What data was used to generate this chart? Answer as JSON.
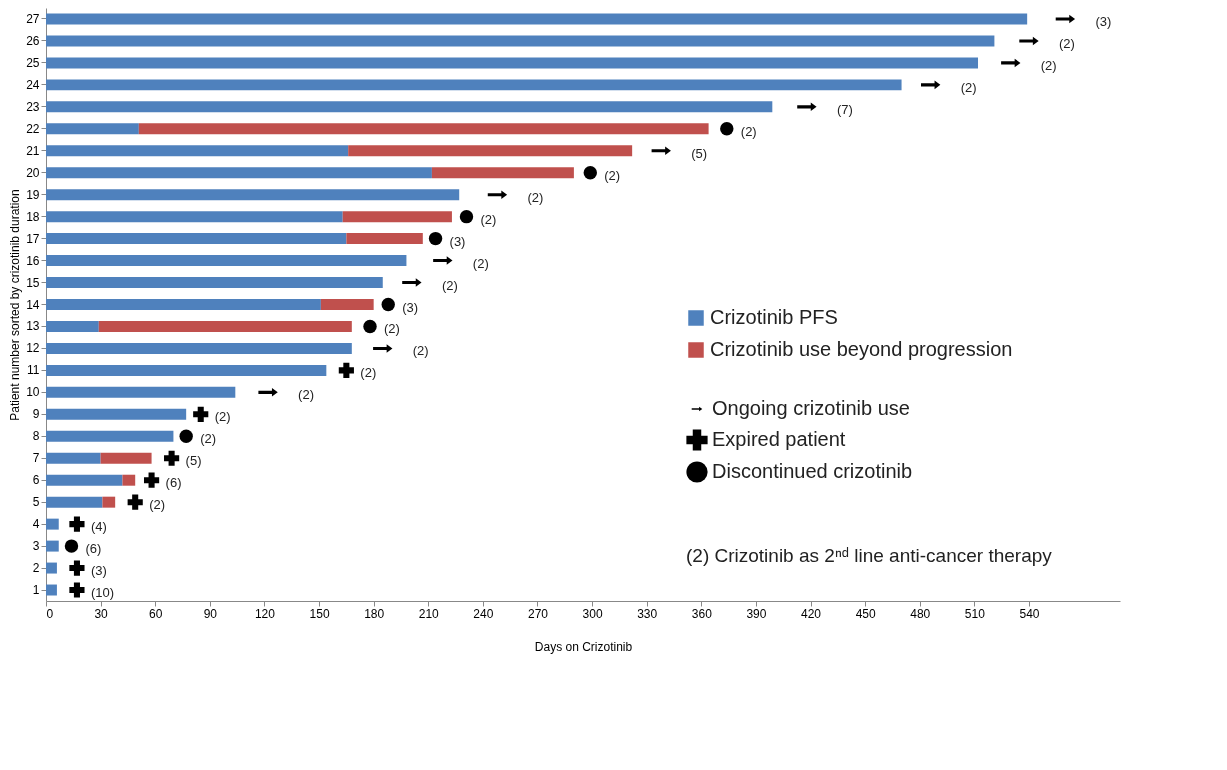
{
  "chart_data": {
    "type": "bar",
    "orientation": "horizontal",
    "stacked": true,
    "xlabel": "Days on Crizotinib",
    "ylabel": "Patient number sorted by crizotinib duration",
    "categories": [
      "27",
      "26",
      "25",
      "24",
      "23",
      "22",
      "21",
      "20",
      "19",
      "18",
      "17",
      "16",
      "15",
      "14",
      "13",
      "12",
      "11",
      "10",
      "9",
      "8",
      "7",
      "6",
      "5",
      "4",
      "3",
      "2",
      "1"
    ],
    "xlim": [
      0,
      590
    ],
    "xticks": [
      0,
      30,
      60,
      90,
      120,
      150,
      180,
      210,
      240,
      270,
      300,
      330,
      360,
      390,
      420,
      450,
      480,
      510,
      540
    ],
    "grid": false,
    "legend": "right",
    "series": [
      {
        "name": "Crizotinib PFS",
        "color": "#4f81bd",
        "values": [
          539,
          521,
          512,
          470,
          399,
          51,
          166,
          212,
          227,
          163,
          165,
          198,
          185,
          151,
          29,
          168,
          154,
          104,
          77,
          70,
          30,
          42,
          31,
          7,
          7,
          6,
          6
        ]
      },
      {
        "name": "Crizotinib use beyond progression",
        "color": "#c0504d",
        "values": [
          null,
          null,
          null,
          null,
          null,
          313,
          156,
          78,
          null,
          60,
          42,
          null,
          null,
          29,
          139,
          null,
          null,
          null,
          null,
          null,
          28,
          7,
          7,
          null,
          null,
          null,
          null
        ]
      },
      {
        "name": "Ongoing crizotinib use",
        "type": "scatter",
        "marker": "triangle",
        "color": "#000000",
        "values": [
          560,
          540,
          530,
          486,
          418,
          null,
          338,
          null,
          248,
          null,
          null,
          218,
          201,
          null,
          null,
          185,
          null,
          122,
          null,
          null,
          null,
          null,
          null,
          null,
          null,
          null,
          null
        ]
      },
      {
        "name": "Expired patient",
        "type": "scatter",
        "marker": "cross",
        "color": "#000000",
        "values": [
          null,
          null,
          null,
          null,
          null,
          null,
          null,
          null,
          null,
          null,
          null,
          null,
          null,
          null,
          null,
          null,
          165,
          null,
          85,
          null,
          69,
          58,
          49,
          17,
          null,
          17,
          17
        ]
      },
      {
        "name": "Discontinued crizotinib",
        "type": "scatter",
        "marker": "circle",
        "color": "#000000",
        "values": [
          null,
          null,
          null,
          null,
          null,
          374,
          null,
          299,
          null,
          231,
          214,
          null,
          null,
          188,
          178,
          null,
          null,
          null,
          null,
          77,
          null,
          null,
          null,
          null,
          14,
          null,
          null
        ]
      }
    ],
    "annotations": [
      "(2)  Crizotinib as 2ⁿᵈ line anti-cancer therapy",
      {
        "text": "(3)",
        "x": 560,
        "y": "27"
      },
      {
        "text": "(2)",
        "x": 540,
        "y": "26"
      },
      {
        "text": "(2)",
        "x": 530,
        "y": "25"
      },
      {
        "text": "(2)",
        "x": 486,
        "y": "24"
      },
      {
        "text": "(7)",
        "x": 418,
        "y": "23"
      },
      {
        "text": "(2)",
        "x": 374,
        "y": "22"
      },
      {
        "text": "(5)",
        "x": 338,
        "y": "21"
      },
      {
        "text": "(2)",
        "x": 299,
        "y": "20"
      },
      {
        "text": "(2)",
        "x": 248,
        "y": "19"
      },
      {
        "text": "(2)",
        "x": 231,
        "y": "18"
      },
      {
        "text": "(3)",
        "x": 214,
        "y": "17"
      },
      {
        "text": "(2)",
        "x": 218,
        "y": "16"
      },
      {
        "text": "(2)",
        "x": 201,
        "y": "15"
      },
      {
        "text": "(3)",
        "x": 188,
        "y": "14"
      },
      {
        "text": "(2)",
        "x": 178,
        "y": "13"
      },
      {
        "text": "(2)",
        "x": 185,
        "y": "12"
      },
      {
        "text": "(2)",
        "x": 165,
        "y": "11"
      },
      {
        "text": "(2)",
        "x": 122,
        "y": "10"
      },
      {
        "text": "(2)",
        "x": 85,
        "y": "9"
      },
      {
        "text": "(2)",
        "x": 77,
        "y": "8"
      },
      {
        "text": "(5)",
        "x": 69,
        "y": "7"
      },
      {
        "text": "(6)",
        "x": 58,
        "y": "6"
      },
      {
        "text": "(2)",
        "x": 49,
        "y": "5"
      },
      {
        "text": "(4)",
        "x": 17,
        "y": "4"
      },
      {
        "text": "(6)",
        "x": 14,
        "y": "3"
      },
      {
        "text": "(3)",
        "x": 17,
        "y": "2"
      },
      {
        "text": "(10)",
        "x": 17,
        "y": "1"
      }
    ]
  }
}
